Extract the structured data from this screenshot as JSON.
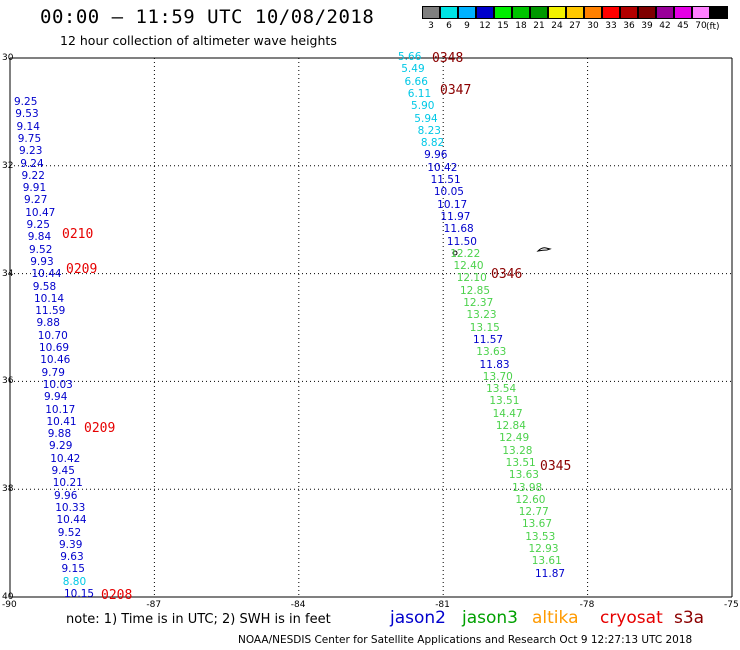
{
  "title": "00:00 — 11:59 UTC 10/08/2018",
  "subtitle": "12 hour collection of altimeter wave heights",
  "legend": {
    "swatches": [
      {
        "label": "3",
        "color": "#7f7f7f"
      },
      {
        "label": "6",
        "color": "#00e5e5"
      },
      {
        "label": "9",
        "color": "#00b2ff"
      },
      {
        "label": "12",
        "color": "#0000cc"
      },
      {
        "label": "15",
        "color": "#00ee00"
      },
      {
        "label": "18",
        "color": "#00c400"
      },
      {
        "label": "21",
        "color": "#009900"
      },
      {
        "label": "24",
        "color": "#f2f200"
      },
      {
        "label": "27",
        "color": "#ffc800"
      },
      {
        "label": "30",
        "color": "#ff8000"
      },
      {
        "label": "33",
        "color": "#ff0000"
      },
      {
        "label": "36",
        "color": "#b20000"
      },
      {
        "label": "39",
        "color": "#7f0000"
      },
      {
        "label": "42",
        "color": "#990099"
      },
      {
        "label": "45",
        "color": "#e500e5"
      },
      {
        "label": "70",
        "color": "#ff80ff"
      },
      {
        "label": "",
        "color": "#000000"
      }
    ],
    "unit": "(ft)"
  },
  "axes": {
    "y_ticks": [
      "30",
      "32",
      "34",
      "36",
      "38",
      "40"
    ],
    "x_ticks": [
      "90",
      "87",
      "84",
      "81",
      "78",
      "75"
    ]
  },
  "colors": {
    "cyan": "#00c8e6",
    "blue": "#0000cc",
    "green": "#4cd24c",
    "red": "#e60000",
    "darkred": "#8b0000",
    "orange": "#ff9a00"
  },
  "tracks": [
    {
      "satellite": "jason2",
      "points": [
        {
          "v": "9.25",
          "c": "blue"
        },
        {
          "v": "9.53",
          "c": "blue"
        },
        {
          "v": "9.14",
          "c": "blue"
        },
        {
          "v": "9.75",
          "c": "blue"
        },
        {
          "v": "9.23",
          "c": "blue"
        },
        {
          "v": "9.24",
          "c": "blue"
        },
        {
          "v": "9.22",
          "c": "blue"
        },
        {
          "v": "9.91",
          "c": "blue"
        },
        {
          "v": "9.27",
          "c": "blue"
        },
        {
          "v": "10.47",
          "c": "blue"
        },
        {
          "v": "9.25",
          "c": "blue"
        },
        {
          "v": "9.84",
          "c": "blue"
        },
        {
          "v": "9.52",
          "c": "blue"
        },
        {
          "v": "9.93",
          "c": "blue"
        },
        {
          "v": "10.44",
          "c": "blue"
        },
        {
          "v": "9.58",
          "c": "blue"
        },
        {
          "v": "10.14",
          "c": "blue"
        },
        {
          "v": "11.59",
          "c": "blue"
        },
        {
          "v": "9.88",
          "c": "blue"
        },
        {
          "v": "10.70",
          "c": "blue"
        },
        {
          "v": "10.69",
          "c": "blue"
        },
        {
          "v": "10.46",
          "c": "blue"
        },
        {
          "v": "9.79",
          "c": "blue"
        },
        {
          "v": "10.03",
          "c": "blue"
        },
        {
          "v": "9.94",
          "c": "blue"
        },
        {
          "v": "10.17",
          "c": "blue"
        },
        {
          "v": "10.41",
          "c": "blue"
        },
        {
          "v": "9.88",
          "c": "blue"
        },
        {
          "v": "9.29",
          "c": "blue"
        },
        {
          "v": "10.42",
          "c": "blue"
        },
        {
          "v": "9.45",
          "c": "blue"
        },
        {
          "v": "10.21",
          "c": "blue"
        },
        {
          "v": "9.96",
          "c": "blue"
        },
        {
          "v": "10.33",
          "c": "blue"
        },
        {
          "v": "10.44",
          "c": "blue"
        },
        {
          "v": "9.52",
          "c": "blue"
        },
        {
          "v": "9.39",
          "c": "blue"
        },
        {
          "v": "9.63",
          "c": "blue"
        },
        {
          "v": "9.15",
          "c": "blue"
        },
        {
          "v": "8.80",
          "c": "cyan"
        },
        {
          "v": "10.15",
          "c": "blue"
        }
      ]
    },
    {
      "satellite": "jason3",
      "points": [
        {
          "v": "5.66",
          "c": "cyan"
        },
        {
          "v": "5.49",
          "c": "cyan"
        },
        {
          "v": "6.66",
          "c": "cyan"
        },
        {
          "v": "6.11",
          "c": "cyan"
        },
        {
          "v": "5.90",
          "c": "cyan"
        },
        {
          "v": "5.94",
          "c": "cyan"
        },
        {
          "v": "8.23",
          "c": "cyan"
        },
        {
          "v": "8.82",
          "c": "cyan"
        },
        {
          "v": "9.96",
          "c": "blue"
        },
        {
          "v": "10.42",
          "c": "blue"
        },
        {
          "v": "11.51",
          "c": "blue"
        },
        {
          "v": "10.05",
          "c": "blue"
        },
        {
          "v": "10.17",
          "c": "blue"
        },
        {
          "v": "11.97",
          "c": "blue"
        },
        {
          "v": "11.68",
          "c": "blue"
        },
        {
          "v": "11.50",
          "c": "blue"
        },
        {
          "v": "12.22",
          "c": "green"
        },
        {
          "v": "12.40",
          "c": "green"
        },
        {
          "v": "12.10",
          "c": "green"
        },
        {
          "v": "12.85",
          "c": "green"
        },
        {
          "v": "12.37",
          "c": "green"
        },
        {
          "v": "13.23",
          "c": "green"
        },
        {
          "v": "13.15",
          "c": "green"
        },
        {
          "v": "11.57",
          "c": "blue"
        },
        {
          "v": "13.63",
          "c": "green"
        },
        {
          "v": "11.83",
          "c": "blue"
        },
        {
          "v": "13.70",
          "c": "green"
        },
        {
          "v": "13.54",
          "c": "green"
        },
        {
          "v": "13.51",
          "c": "green"
        },
        {
          "v": "14.47",
          "c": "green"
        },
        {
          "v": "12.84",
          "c": "green"
        },
        {
          "v": "12.49",
          "c": "green"
        },
        {
          "v": "13.28",
          "c": "green"
        },
        {
          "v": "13.51",
          "c": "green"
        },
        {
          "v": "13.63",
          "c": "green"
        },
        {
          "v": "13.98",
          "c": "green"
        },
        {
          "v": "12.60",
          "c": "green"
        },
        {
          "v": "12.77",
          "c": "green"
        },
        {
          "v": "13.67",
          "c": "green"
        },
        {
          "v": "13.53",
          "c": "green"
        },
        {
          "v": "12.93",
          "c": "green"
        },
        {
          "v": "13.61",
          "c": "green"
        },
        {
          "v": "11.87",
          "c": "blue"
        }
      ]
    }
  ],
  "pass_labels": [
    {
      "text": "0348",
      "c": "darkred"
    },
    {
      "text": "0347",
      "c": "darkred"
    },
    {
      "text": "0346",
      "c": "darkred"
    },
    {
      "text": "0345",
      "c": "darkred"
    },
    {
      "text": "0210",
      "c": "red"
    },
    {
      "text": "0209",
      "c": "red"
    },
    {
      "text": "0209",
      "c": "red"
    },
    {
      "text": "0208",
      "c": "red"
    }
  ],
  "note": "note:  1) Time is in UTC;  2) SWH is in feet",
  "satellites": [
    {
      "name": "jason2",
      "color": "#0000cc"
    },
    {
      "name": "jason3",
      "color": "#00a000"
    },
    {
      "name": "altika",
      "color": "#ff9a00"
    },
    {
      "name": "cryosat",
      "color": "#e60000"
    },
    {
      "name": "s3a",
      "color": "#8b0000"
    }
  ],
  "footer": "NOAA/NESDIS Center for Satellite Applications and Research    Oct  9 12:27:13 UTC 2018"
}
